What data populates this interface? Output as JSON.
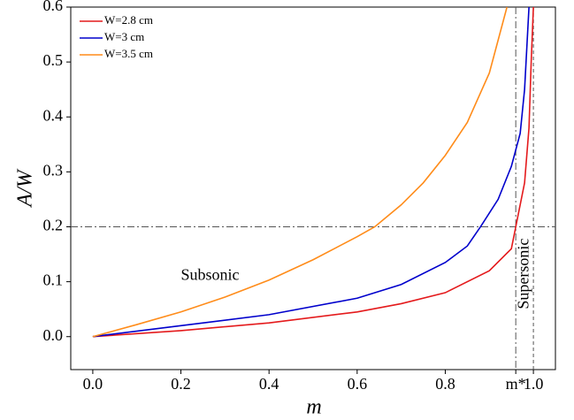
{
  "chart_data": {
    "type": "line",
    "xlabel": "m",
    "ylabel": "A/W",
    "xlim": [
      -0.05,
      1.05
    ],
    "ylim": [
      -0.06,
      0.6
    ],
    "xticks": [
      {
        "value": 0,
        "label": "0.0"
      },
      {
        "value": 0.2,
        "label": "0.2"
      },
      {
        "value": 0.4,
        "label": "0.4"
      },
      {
        "value": 0.6,
        "label": "0.6"
      },
      {
        "value": 0.8,
        "label": "0.8"
      },
      {
        "value": 0.96,
        "label": "m*"
      },
      {
        "value": 1.0,
        "label": "1.0"
      }
    ],
    "yticks": [
      {
        "value": 0,
        "label": "0.0"
      },
      {
        "value": 0.1,
        "label": "0.1"
      },
      {
        "value": 0.2,
        "label": "0.2"
      },
      {
        "value": 0.3,
        "label": "0.3"
      },
      {
        "value": 0.4,
        "label": "0.4"
      },
      {
        "value": 0.5,
        "label": "0.5"
      },
      {
        "value": 0.6,
        "label": "0.6"
      }
    ],
    "hline": 0.2,
    "vline_dashdot": 0.96,
    "vline_dashed": 1.0,
    "legend": "upper left",
    "annotations": [
      {
        "text": "Subsonic",
        "x": 0.2,
        "y": 0.11
      },
      {
        "text": "Supersonic",
        "x": 0.98,
        "y": 0.05
      }
    ],
    "series": [
      {
        "name": "W=2.8 cm",
        "color": "#e41a1c",
        "x": [
          0,
          0.2,
          0.4,
          0.6,
          0.7,
          0.8,
          0.9,
          0.95,
          0.96,
          0.98,
          0.99,
          0.995,
          1.0
        ],
        "values": [
          0,
          0.011,
          0.025,
          0.045,
          0.06,
          0.08,
          0.12,
          0.16,
          0.2,
          0.28,
          0.38,
          0.5,
          0.6
        ]
      },
      {
        "name": "W=3 cm",
        "color": "#0000cc",
        "x": [
          0,
          0.2,
          0.4,
          0.6,
          0.7,
          0.8,
          0.85,
          0.88,
          0.92,
          0.95,
          0.97,
          0.98,
          0.99
        ],
        "values": [
          0,
          0.02,
          0.04,
          0.07,
          0.095,
          0.135,
          0.165,
          0.2,
          0.25,
          0.31,
          0.37,
          0.45,
          0.6
        ]
      },
      {
        "name": "W=3.5 cm",
        "color": "#ff8c1a",
        "x": [
          0,
          0.1,
          0.2,
          0.3,
          0.4,
          0.5,
          0.6,
          0.64,
          0.7,
          0.75,
          0.8,
          0.85,
          0.9,
          0.94
        ],
        "values": [
          0,
          0.022,
          0.045,
          0.072,
          0.103,
          0.14,
          0.182,
          0.2,
          0.24,
          0.28,
          0.33,
          0.39,
          0.48,
          0.6
        ]
      }
    ]
  }
}
